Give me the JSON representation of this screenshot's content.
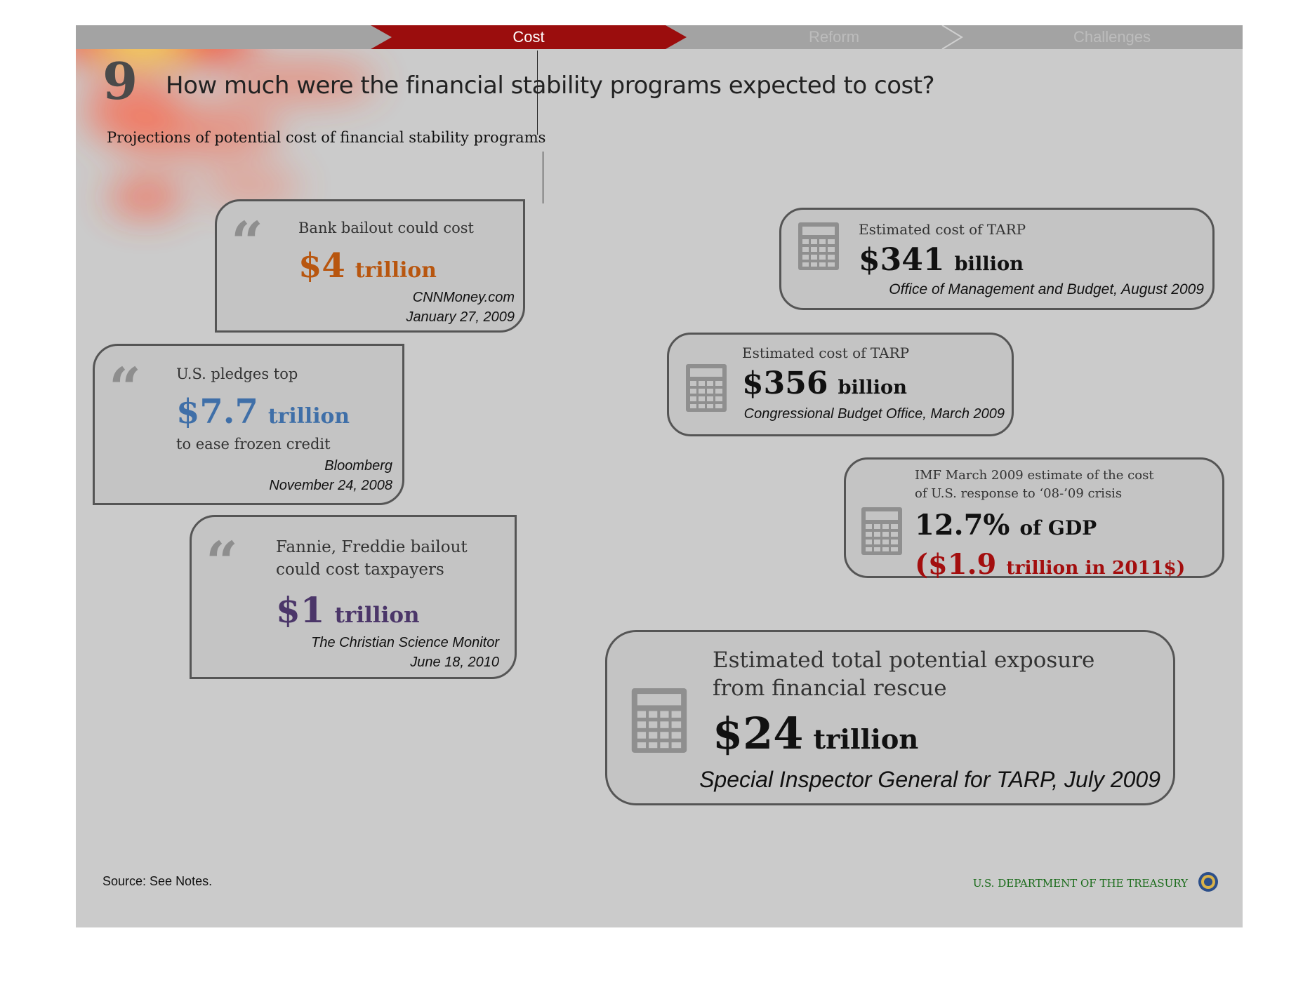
{
  "nav": {
    "tabs": [
      {
        "label": ""
      },
      {
        "label": "Cost"
      },
      {
        "label": "Reform"
      },
      {
        "label": "Challenges"
      }
    ]
  },
  "header": {
    "number": "9",
    "title": "How much were the financial stability programs expected to cost?",
    "subtitle": "Projections of potential cost of financial stability programs"
  },
  "quotes": [
    {
      "label": "Bank bailout could cost",
      "amount": "$4",
      "unit": "trillion",
      "source": "CNNMoney.com",
      "date": "January 27, 2009",
      "color": "#b8560f"
    },
    {
      "label": "U.S. pledges top",
      "amount": "$7.7",
      "unit": "trillion",
      "extra": "to ease frozen credit",
      "source": "Bloomberg",
      "date": "November 24, 2008",
      "color": "#3f6fa8"
    },
    {
      "label_line1": "Fannie, Freddie bailout",
      "label_line2": "could cost taxpayers",
      "amount": "$1",
      "unit": "trillion",
      "source": "The Christian Science Monitor",
      "date": "June 18, 2010",
      "color": "#4b3669"
    }
  ],
  "estimates": [
    {
      "label": "Estimated cost of TARP",
      "amount": "$341",
      "unit": "billion",
      "source": "Office of Management and Budget, August 2009"
    },
    {
      "label": "Estimated cost of TARP",
      "amount": "$356",
      "unit": "billion",
      "source": "Congressional Budget Office, March 2009"
    },
    {
      "label_line1": "IMF March 2009 estimate of the cost",
      "label_line2": "of U.S. response to ‘08-’09 crisis",
      "amount": "12.7%",
      "unit": "of GDP",
      "sub_amount": "($1.9",
      "sub_unit": "trillion in 2011$)",
      "sub_color": "#a30e0e"
    },
    {
      "label_line1": "Estimated total potential exposure",
      "label_line2": "from financial rescue",
      "amount": "$24",
      "unit": "trillion",
      "source": "Special Inspector General for TARP, July 2009"
    }
  ],
  "quote_glyph": "“",
  "icons": {
    "calculator": "calculator-icon",
    "seal": "treasury-seal-icon"
  },
  "footer": {
    "source": "Source: See Notes.",
    "department": "U.S. DEPARTMENT OF THE TREASURY"
  }
}
